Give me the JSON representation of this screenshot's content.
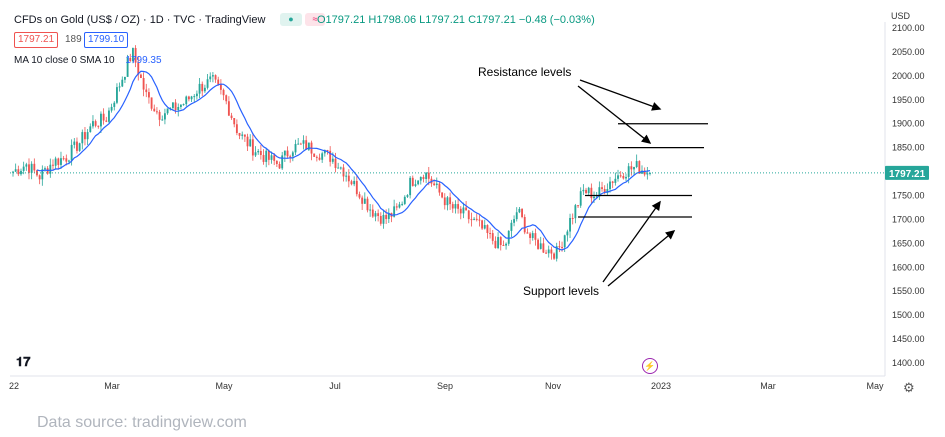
{
  "header": {
    "symbol": "CFDs on Gold (US$ / OZ) · 1D · TVC · TradingView",
    "ohlc_o": "O1797.21",
    "ohlc_h": "H1798.06",
    "ohlc_l": "L1797.21",
    "ohlc_c": "C1797.21",
    "change": "−0.48 (−0.03%)",
    "bid": "1797.21",
    "spread": "189",
    "ask": "1799.10",
    "indicator": "MA 10 close 0 SMA 10",
    "indicator_value": "1799.35",
    "currency": "USD"
  },
  "annotations": {
    "resistance": "Resistance levels",
    "support": "Support levels"
  },
  "footer": {
    "source": "Data source: tradingview.com"
  },
  "colors": {
    "up": "#26a69a",
    "down": "#ef5350",
    "ma": "#2962ff",
    "last": "#26a69a"
  },
  "chart_data": {
    "type": "candlestick",
    "y_axis": {
      "ylim": [
        1390,
        2110
      ],
      "ticks": [
        1400,
        1450,
        1500,
        1550,
        1600,
        1650,
        1700,
        1750,
        1800,
        1850,
        1900,
        1950,
        2000,
        2050,
        2100
      ]
    },
    "x_ticks": [
      "22",
      "Mar",
      "May",
      "Jul",
      "Sep",
      "Nov",
      "2023",
      "Mar",
      "May"
    ],
    "last_price": 1797.21,
    "resistance_levels": [
      1900,
      1850
    ],
    "support_levels": [
      1750,
      1705
    ],
    "close_path": [
      [
        "2022-01",
        1800
      ],
      [
        "2022-01",
        1815
      ],
      [
        "2022-01",
        1790
      ],
      [
        "2022-01",
        1820
      ],
      [
        "2022-02",
        1830
      ],
      [
        "2022-02",
        1860
      ],
      [
        "2022-02",
        1900
      ],
      [
        "2022-02",
        1910
      ],
      [
        "2022-03",
        1980
      ],
      [
        "2022-03",
        2050
      ],
      [
        "2022-03",
        1960
      ],
      [
        "2022-03",
        1920
      ],
      [
        "2022-03",
        1930
      ],
      [
        "2022-04",
        1945
      ],
      [
        "2022-04",
        1975
      ],
      [
        "2022-04",
        1990
      ],
      [
        "2022-04",
        1950
      ],
      [
        "2022-05",
        1880
      ],
      [
        "2022-05",
        1850
      ],
      [
        "2022-05",
        1830
      ],
      [
        "2022-05",
        1815
      ],
      [
        "2022-06",
        1850
      ],
      [
        "2022-06",
        1855
      ],
      [
        "2022-06",
        1840
      ],
      [
        "2022-06",
        1830
      ],
      [
        "2022-07",
        1800
      ],
      [
        "2022-07",
        1760
      ],
      [
        "2022-07",
        1720
      ],
      [
        "2022-07",
        1700
      ],
      [
        "2022-08",
        1720
      ],
      [
        "2022-08",
        1780
      ],
      [
        "2022-08",
        1800
      ],
      [
        "2022-08",
        1760
      ],
      [
        "2022-09",
        1725
      ],
      [
        "2022-09",
        1710
      ],
      [
        "2022-09",
        1690
      ],
      [
        "2022-09",
        1660
      ],
      [
        "2022-10",
        1640
      ],
      [
        "2022-10",
        1720
      ],
      [
        "2022-10",
        1660
      ],
      [
        "2022-10",
        1640
      ],
      [
        "2022-11",
        1630
      ],
      [
        "2022-11",
        1700
      ],
      [
        "2022-11",
        1760
      ],
      [
        "2022-11",
        1750
      ],
      [
        "2022-12",
        1780
      ],
      [
        "2022-12",
        1800
      ],
      [
        "2022-12",
        1810
      ],
      [
        "2022-12",
        1797
      ]
    ]
  }
}
